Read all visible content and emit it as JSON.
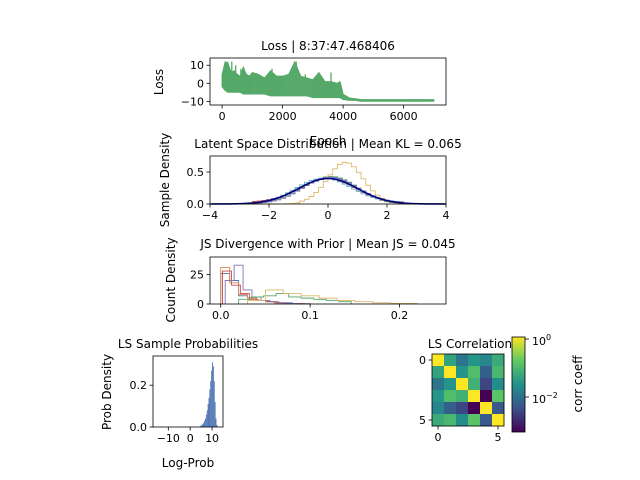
{
  "chart_data": [
    {
      "id": "loss",
      "type": "line",
      "title": "Loss | 8:37:47.468406",
      "xlabel": "Epoch",
      "ylabel": "Loss",
      "xlim": [
        -400,
        7400
      ],
      "ylim": [
        -12,
        14
      ],
      "xticks": [
        0,
        2000,
        4000,
        6000
      ],
      "yticks": [
        -10,
        0,
        10
      ],
      "series": [
        {
          "color": "#55a868",
          "x": [
            0,
            100,
            200,
            300,
            400,
            500,
            600,
            700,
            800,
            900,
            1000,
            1200,
            1400,
            1600,
            1800,
            2000,
            2200,
            2400,
            2600,
            2800,
            3000,
            3200,
            3400,
            3600,
            3800,
            3900,
            4000,
            4200,
            4400,
            4600,
            4800,
            5000,
            5200,
            5400,
            5600,
            5800,
            6000,
            6200,
            6400,
            6600,
            6800,
            7000
          ],
          "lo": [
            -2,
            -4,
            -5,
            -5,
            -5,
            -5,
            -5,
            -6,
            -6,
            -6,
            -6,
            -6,
            -6,
            -7,
            -7,
            -7,
            -7,
            -7,
            -7,
            -7,
            -8,
            -8,
            -8,
            -8,
            -8,
            -8,
            -9,
            -9.5,
            -9.5,
            -10,
            -10,
            -10,
            -10,
            -10,
            -10,
            -10,
            -10,
            -10,
            -10,
            -10,
            -10,
            -10
          ],
          "hi": [
            5,
            12,
            11,
            6,
            7,
            5,
            4,
            9,
            5,
            4,
            6,
            5,
            3,
            7,
            4,
            4,
            5,
            12,
            4,
            3,
            2,
            6,
            1,
            1,
            0,
            1,
            -6,
            -8,
            -8.5,
            -9,
            -9,
            -9,
            -9,
            -9,
            -9,
            -9,
            -9,
            -9,
            -9,
            -9,
            -9,
            -9
          ],
          "spikes": [
            {
              "x": 180,
              "y": 12
            },
            {
              "x": 320,
              "y": 12
            },
            {
              "x": 450,
              "y": 10
            },
            {
              "x": 620,
              "y": 8
            },
            {
              "x": 1650,
              "y": 8
            },
            {
              "x": 2450,
              "y": 12
            },
            {
              "x": 2750,
              "y": 5
            },
            {
              "x": 3600,
              "y": 6
            }
          ]
        }
      ]
    },
    {
      "id": "latent",
      "type": "line",
      "title": "Latent Space Distribution | Mean KL = 0.065",
      "xlabel": "",
      "ylabel": "Sample Density",
      "xlim": [
        -4,
        4
      ],
      "ylim": [
        0,
        0.75
      ],
      "xticks": [
        -4,
        -2,
        0,
        2,
        4
      ],
      "yticks": [
        0.0,
        0.5
      ],
      "ytick_labels": [
        "0.0",
        "0.5"
      ],
      "prior": {
        "color": "#00007f",
        "mean": 0,
        "std": 1
      },
      "series": [
        {
          "color": "#4c72b0",
          "mean": 0.0,
          "std": 1.0,
          "step": true
        },
        {
          "color": "#55a868",
          "mean": 0.05,
          "std": 0.95,
          "step": true
        },
        {
          "color": "#c44e52",
          "mean": -0.05,
          "std": 1.05,
          "step": true
        },
        {
          "color": "#8172b2",
          "mean": 0.1,
          "std": 0.98,
          "step": true
        },
        {
          "color": "#64b5cd",
          "mean": -0.1,
          "std": 1.02,
          "step": true
        },
        {
          "color": "#dfb86b",
          "mean": 0.6,
          "std": 0.6,
          "step": true
        }
      ]
    },
    {
      "id": "js",
      "type": "histogram",
      "title": "JS Divergence with Prior | Mean JS = 0.045",
      "xlabel": "",
      "ylabel": "Count Density",
      "xlim": [
        -0.012,
        0.252
      ],
      "ylim": [
        0,
        40
      ],
      "xticks": [
        0.0,
        0.1,
        0.2
      ],
      "xtick_labels": [
        "0.0",
        "0.1",
        "0.2"
      ],
      "yticks": [
        0,
        25
      ],
      "series": [
        {
          "color": "#4c72b0",
          "edges": [
            0.0,
            0.01,
            0.02,
            0.03,
            0.04,
            0.05,
            0.06,
            0.07,
            0.08,
            0.09,
            0.1
          ],
          "counts": [
            26,
            20,
            7,
            5,
            3,
            2,
            1,
            1,
            0.5,
            0.3
          ]
        },
        {
          "color": "#dd8452",
          "edges": [
            0.0,
            0.01,
            0.02,
            0.03,
            0.04,
            0.05,
            0.06,
            0.07,
            0.08,
            0.09,
            0.1
          ],
          "counts": [
            31,
            18,
            8,
            5,
            3,
            2,
            1,
            0.5,
            0.5,
            0.3
          ]
        },
        {
          "color": "#c44e52",
          "edges": [
            0.002,
            0.012,
            0.022,
            0.032,
            0.042,
            0.052,
            0.062,
            0.072,
            0.082,
            0.092
          ],
          "counts": [
            28,
            16,
            9,
            4,
            3,
            2,
            1,
            0.5,
            0.3
          ]
        },
        {
          "color": "#8172b2",
          "edges": [
            0.005,
            0.015,
            0.025,
            0.035,
            0.045,
            0.055,
            0.065,
            0.075,
            0.085,
            0.095
          ],
          "counts": [
            20,
            33,
            12,
            6,
            3,
            2,
            1,
            0.5,
            0.3
          ]
        },
        {
          "color": "#55a868",
          "edges": [
            0.02,
            0.034,
            0.048,
            0.062,
            0.076,
            0.09,
            0.104,
            0.118,
            0.132,
            0.146
          ],
          "counts": [
            4,
            6,
            7,
            9,
            6,
            5,
            4,
            3,
            2
          ]
        },
        {
          "color": "#dfb86b",
          "edges": [
            0.03,
            0.05,
            0.07,
            0.09,
            0.11,
            0.13,
            0.15,
            0.17,
            0.19,
            0.22
          ],
          "counts": [
            3,
            12,
            9,
            7,
            5,
            3,
            2,
            1,
            0.5
          ]
        }
      ]
    },
    {
      "id": "logprob",
      "type": "histogram",
      "title": "LS Sample Probabilities",
      "xlabel": "Log-Prob",
      "ylabel": "Prob Density",
      "xlim": [
        -17,
        15
      ],
      "ylim": [
        0,
        0.34
      ],
      "xticks": [
        -10,
        0,
        10
      ],
      "yticks": [
        0.0,
        0.2
      ],
      "ytick_labels": [
        "0.0",
        "0.2"
      ],
      "series": [
        {
          "color": "#4c72b0",
          "start": 4,
          "binwidth": 0.4,
          "counts": [
            0.002,
            0.004,
            0.006,
            0.01,
            0.015,
            0.02,
            0.03,
            0.04,
            0.06,
            0.08,
            0.11,
            0.14,
            0.18,
            0.22,
            0.27,
            0.31,
            0.29,
            0.22,
            0.12,
            0.04,
            0.01
          ]
        }
      ]
    },
    {
      "id": "corr",
      "type": "heatmap",
      "title": "LS Correlation",
      "xticks": [
        0,
        5
      ],
      "yticks": [
        0,
        5
      ],
      "colorbar_label": "corr coeff",
      "colorbar_tick_labels": [
        "10",
        "10"
      ],
      "colorbar_tick_exponents": [
        "0",
        "−2"
      ],
      "matrix_log10": [
        [
          0.0,
          -1.4,
          -2.0,
          -1.6,
          -1.8,
          -1.3
        ],
        [
          -1.4,
          0.0,
          -1.6,
          -1.0,
          -2.3,
          -1.1
        ],
        [
          -2.0,
          -1.6,
          0.0,
          -1.2,
          -2.6,
          -1.7
        ],
        [
          -1.6,
          -1.0,
          -1.2,
          0.0,
          -3.3,
          -0.9
        ],
        [
          -1.8,
          -2.3,
          -2.6,
          -3.3,
          0.0,
          -2.4
        ],
        [
          -1.3,
          -1.1,
          -1.7,
          -0.9,
          -2.4,
          0.0
        ]
      ]
    }
  ]
}
